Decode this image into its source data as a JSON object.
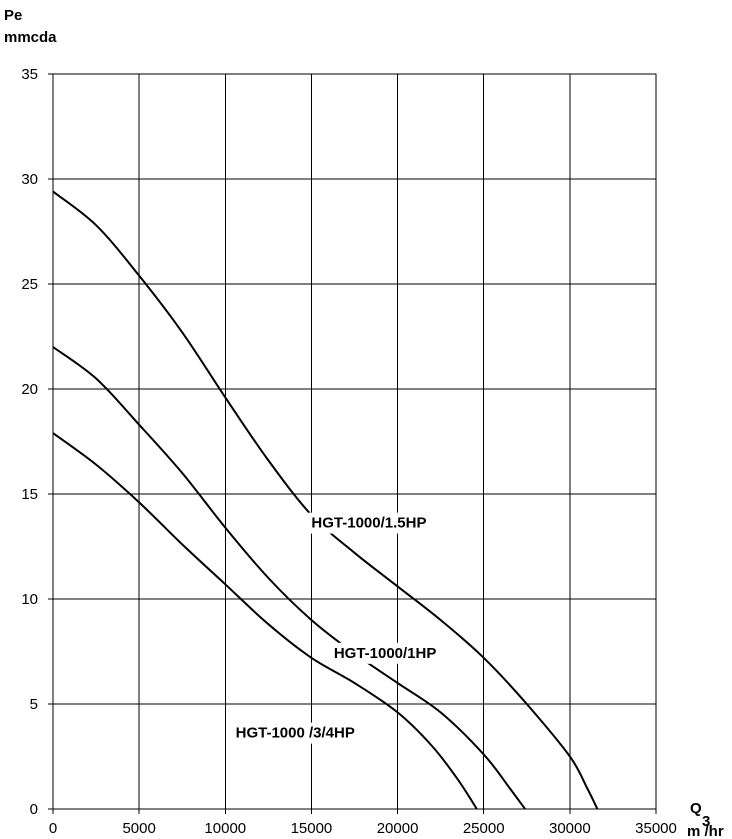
{
  "chart_data": {
    "type": "line",
    "ylabel_lines": [
      "Pe",
      "mmcda"
    ],
    "xlabel_q": "Q",
    "xlabel_sup": "3",
    "xlabel_unit": "m /hr",
    "xlim": [
      0,
      35000
    ],
    "ylim": [
      0,
      35
    ],
    "x_ticks": [
      0,
      5000,
      10000,
      15000,
      20000,
      25000,
      30000,
      35000
    ],
    "y_ticks": [
      0,
      5,
      10,
      15,
      20,
      25,
      30,
      35
    ],
    "grid": true,
    "series": [
      {
        "name": "HGT-1000/1.5HP",
        "x": [
          0,
          2500,
          5000,
          7500,
          10000,
          12500,
          15000,
          17500,
          20000,
          22500,
          25000,
          27500,
          30000,
          31000,
          31600
        ],
        "y": [
          29.4,
          27.8,
          25.4,
          22.7,
          19.6,
          16.6,
          14.0,
          12.2,
          10.6,
          9.0,
          7.2,
          5.0,
          2.5,
          1.0,
          0
        ]
      },
      {
        "name": "HGT-1000/1HP",
        "x": [
          0,
          2500,
          5000,
          7500,
          10000,
          12500,
          15000,
          17500,
          20000,
          22500,
          25000,
          26500,
          27400
        ],
        "y": [
          22.0,
          20.5,
          18.3,
          16.0,
          13.4,
          11.0,
          9.0,
          7.4,
          6.0,
          4.6,
          2.6,
          1.0,
          0
        ]
      },
      {
        "name": "HGT-1000 /3/4HP",
        "x": [
          0,
          2500,
          5000,
          7500,
          10000,
          12500,
          15000,
          17500,
          20000,
          22000,
          23500,
          24600
        ],
        "y": [
          17.9,
          16.4,
          14.6,
          12.6,
          10.7,
          8.8,
          7.2,
          6.0,
          4.6,
          3.0,
          1.4,
          0
        ]
      }
    ],
    "annotations": [
      {
        "text": "HGT-1000/1.5HP",
        "x": 15000,
        "y": 13.4
      },
      {
        "text": "HGT-1000/1HP",
        "x": 16300,
        "y": 7.2
      },
      {
        "text": "HGT-1000 /3/4HP",
        "x": 10600,
        "y": 3.4
      }
    ]
  }
}
